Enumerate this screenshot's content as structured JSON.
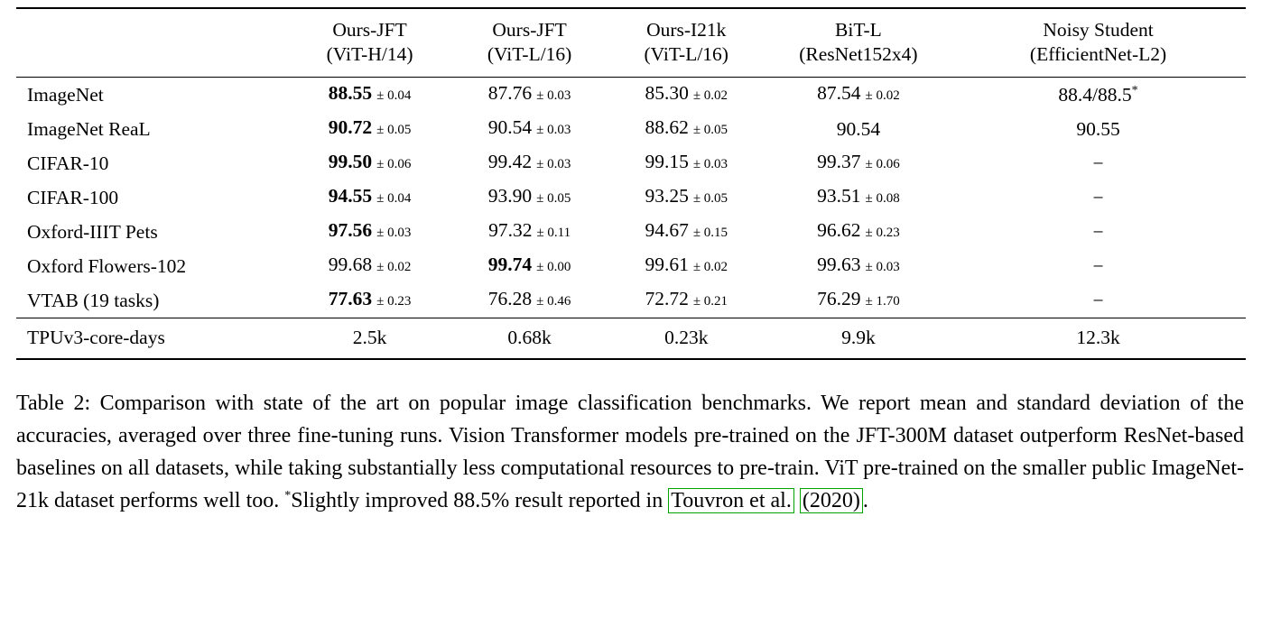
{
  "page": {
    "background": "#ffffff",
    "text_color": "#000000",
    "citation_box_color": "#00a300"
  },
  "table": {
    "header": {
      "col0": {
        "line1": "",
        "line2": ""
      },
      "col1": {
        "line1": "Ours-JFT",
        "line2": "(ViT-H/14)"
      },
      "col2": {
        "line1": "Ours-JFT",
        "line2": "(ViT-L/16)"
      },
      "col3": {
        "line1": "Ours-I21k",
        "line2": "(ViT-L/16)"
      },
      "col4": {
        "line1": "BiT-L",
        "line2": "(ResNet152x4)"
      },
      "col5": {
        "line1": "Noisy Student",
        "line2": "(EfficientNet-L2)"
      }
    },
    "rows": [
      {
        "label": "ImageNet",
        "cells": [
          {
            "value": "88.55",
            "pm": "± 0.04",
            "bold": true
          },
          {
            "value": "87.76",
            "pm": "± 0.03",
            "bold": false
          },
          {
            "value": "85.30",
            "pm": "± 0.02",
            "bold": false
          },
          {
            "value": "87.54",
            "pm": "± 0.02",
            "bold": false
          },
          {
            "value": "88.4/88.5",
            "sup": "*",
            "bold": false
          }
        ]
      },
      {
        "label": "ImageNet ReaL",
        "cells": [
          {
            "value": "90.72",
            "pm": "± 0.05",
            "bold": true
          },
          {
            "value": "90.54",
            "pm": "± 0.03",
            "bold": false
          },
          {
            "value": "88.62",
            "pm": "± 0.05",
            "bold": false
          },
          {
            "value": "90.54",
            "bold": false
          },
          {
            "value": "90.55",
            "bold": false
          }
        ]
      },
      {
        "label": "CIFAR-10",
        "cells": [
          {
            "value": "99.50",
            "pm": "± 0.06",
            "bold": true
          },
          {
            "value": "99.42",
            "pm": "± 0.03",
            "bold": false
          },
          {
            "value": "99.15",
            "pm": "± 0.03",
            "bold": false
          },
          {
            "value": "99.37",
            "pm": "± 0.06",
            "bold": false
          },
          {
            "value": "−",
            "bold": false
          }
        ]
      },
      {
        "label": "CIFAR-100",
        "cells": [
          {
            "value": "94.55",
            "pm": "± 0.04",
            "bold": true
          },
          {
            "value": "93.90",
            "pm": "± 0.05",
            "bold": false
          },
          {
            "value": "93.25",
            "pm": "± 0.05",
            "bold": false
          },
          {
            "value": "93.51",
            "pm": "± 0.08",
            "bold": false
          },
          {
            "value": "−",
            "bold": false
          }
        ]
      },
      {
        "label": "Oxford-IIIT Pets",
        "cells": [
          {
            "value": "97.56",
            "pm": "± 0.03",
            "bold": true
          },
          {
            "value": "97.32",
            "pm": "± 0.11",
            "bold": false
          },
          {
            "value": "94.67",
            "pm": "± 0.15",
            "bold": false
          },
          {
            "value": "96.62",
            "pm": "± 0.23",
            "bold": false
          },
          {
            "value": "−",
            "bold": false
          }
        ]
      },
      {
        "label": "Oxford Flowers-102",
        "cells": [
          {
            "value": "99.68",
            "pm": "± 0.02",
            "bold": false
          },
          {
            "value": "99.74",
            "pm": "± 0.00",
            "bold": true
          },
          {
            "value": "99.61",
            "pm": "± 0.02",
            "bold": false
          },
          {
            "value": "99.63",
            "pm": "± 0.03",
            "bold": false
          },
          {
            "value": "−",
            "bold": false
          }
        ]
      },
      {
        "label": "VTAB (19 tasks)",
        "cells": [
          {
            "value": "77.63",
            "pm": "± 0.23",
            "bold": true
          },
          {
            "value": "76.28",
            "pm": "± 0.46",
            "bold": false
          },
          {
            "value": "72.72",
            "pm": "± 0.21",
            "bold": false
          },
          {
            "value": "76.29",
            "pm": "± 1.70",
            "bold": false
          },
          {
            "value": "−",
            "bold": false
          }
        ]
      }
    ],
    "footer": {
      "label": "TPUv3-core-days",
      "cells": [
        {
          "value": "2.5k"
        },
        {
          "value": "0.68k"
        },
        {
          "value": "0.23k"
        },
        {
          "value": "9.9k"
        },
        {
          "value": "12.3k"
        }
      ]
    }
  },
  "caption": {
    "part1": "Table 2:  Comparison with state of the art on popular image classification benchmarks. We report mean and standard deviation of the accuracies, averaged over three fine-tuning runs. Vision Transformer models pre-trained on the JFT-300M dataset outperform ResNet-based baselines on all datasets, while taking substantially less computational resources to pre-train. ViT pre-trained on the smaller public ImageNet-21k dataset performs well too. ",
    "star": "*",
    "part2": "Slightly improved 88.5% result reported in ",
    "cite_name": "Touvron et al.",
    "cite_year": "(2020)",
    "part3": "."
  }
}
